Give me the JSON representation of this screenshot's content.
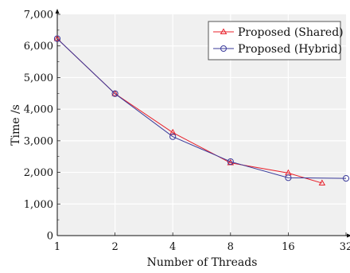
{
  "chart_data": {
    "type": "line",
    "x_scale": "log2",
    "x_ticks": [
      1,
      2,
      4,
      8,
      16,
      32
    ],
    "x_tick_labels": [
      "1",
      "2",
      "4",
      "8",
      "16",
      "32"
    ],
    "y_ticks": [
      0,
      1000,
      2000,
      3000,
      4000,
      5000,
      6000,
      7000
    ],
    "y_tick_labels": [
      "0",
      "1,000",
      "2,000",
      "3,000",
      "4,000",
      "5,000",
      "6,000",
      "7,000"
    ],
    "xlim": [
      1,
      32
    ],
    "ylim": [
      0,
      7000
    ],
    "xlabel": "Number of Threads",
    "ylabel": "Time /s",
    "grid": true,
    "legend_position": "top-right",
    "series": [
      {
        "name": "Proposed (Shared)",
        "color": "#e8202a",
        "marker": "triangle",
        "x": [
          1,
          2,
          4,
          8,
          16,
          24
        ],
        "y": [
          6230,
          4490,
          3260,
          2300,
          1980,
          1660
        ]
      },
      {
        "name": "Proposed (Hybrid)",
        "color": "#3a3a9a",
        "marker": "circle",
        "x": [
          1,
          2,
          4,
          8,
          16,
          32
        ],
        "y": [
          6230,
          4490,
          3130,
          2340,
          1830,
          1810
        ]
      }
    ]
  }
}
